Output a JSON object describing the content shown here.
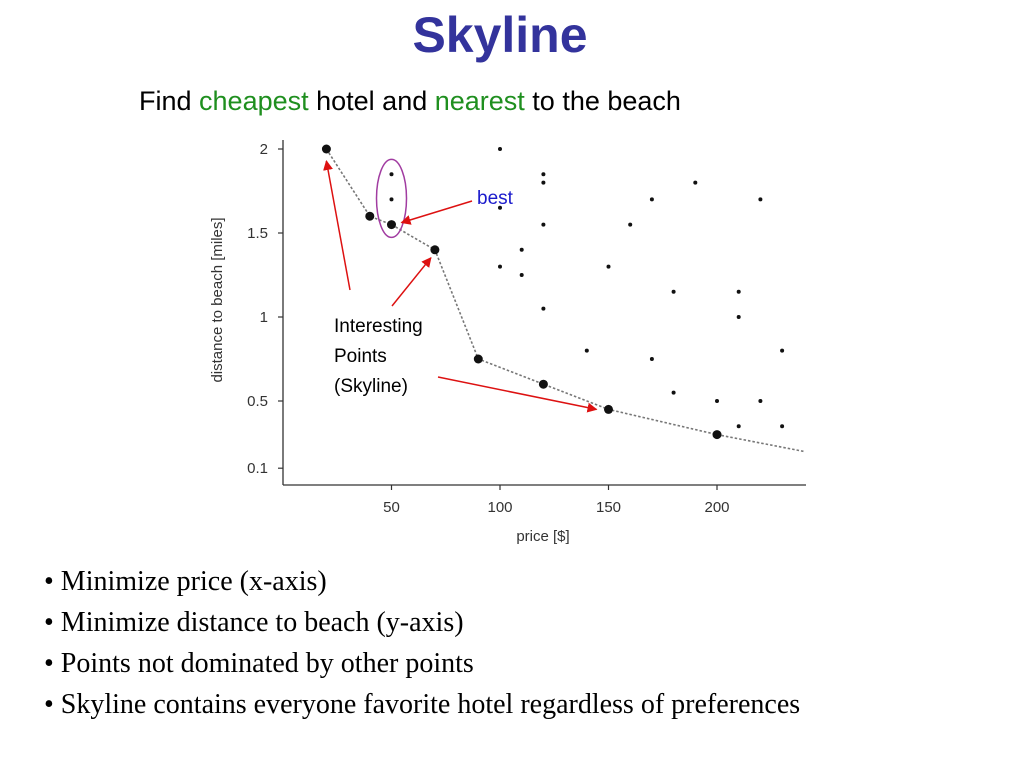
{
  "slide": {
    "title": "Skyline",
    "subtitle": {
      "part1": "Find ",
      "word1": "cheapest",
      "part2": " hotel and ",
      "word2": "nearest",
      "part3": " to the beach"
    },
    "bullets": [
      "• Minimize price (x-axis)",
      "• Minimize distance to beach (y-axis)",
      "• Points not dominated by other points",
      "• Skyline contains everyone favorite hotel regardless of preferences"
    ]
  },
  "colors": {
    "title": "#33339c",
    "highlight_word": "#1f8f1f",
    "arrow": "#dd1111",
    "ellipse": "#a13ca1",
    "best_label": "#1a1acc"
  },
  "chart_data": {
    "type": "scatter",
    "xlabel": "price [$]",
    "ylabel": "distance to beach [miles]",
    "xlim": [
      0,
      240
    ],
    "ylim": [
      0.1,
      2
    ],
    "x_ticks": [
      50,
      100,
      150,
      200
    ],
    "y_ticks": [
      0.1,
      0.5,
      1,
      1.5,
      2
    ],
    "x_tick_labels": [
      "50",
      "100",
      "150",
      "200"
    ],
    "y_tick_labels": [
      "0.1",
      "0.5",
      "1",
      "1.5",
      "2"
    ],
    "grid": false,
    "skyline_points": [
      {
        "x": 20,
        "y": 2.0
      },
      {
        "x": 40,
        "y": 1.6
      },
      {
        "x": 50,
        "y": 1.55
      },
      {
        "x": 70,
        "y": 1.4
      },
      {
        "x": 90,
        "y": 0.75
      },
      {
        "x": 120,
        "y": 0.6
      },
      {
        "x": 150,
        "y": 0.45
      },
      {
        "x": 200,
        "y": 0.3
      }
    ],
    "skyline_line_end": {
      "x": 240,
      "y": 0.2
    },
    "other_points": [
      {
        "x": 50,
        "y": 1.85
      },
      {
        "x": 50,
        "y": 1.7
      },
      {
        "x": 100,
        "y": 2.0
      },
      {
        "x": 100,
        "y": 1.65
      },
      {
        "x": 100,
        "y": 1.3
      },
      {
        "x": 110,
        "y": 1.4
      },
      {
        "x": 110,
        "y": 1.25
      },
      {
        "x": 120,
        "y": 1.85
      },
      {
        "x": 120,
        "y": 1.8
      },
      {
        "x": 120,
        "y": 1.55
      },
      {
        "x": 120,
        "y": 1.05
      },
      {
        "x": 140,
        "y": 0.8
      },
      {
        "x": 150,
        "y": 1.3
      },
      {
        "x": 160,
        "y": 1.55
      },
      {
        "x": 170,
        "y": 1.7
      },
      {
        "x": 170,
        "y": 0.75
      },
      {
        "x": 180,
        "y": 1.15
      },
      {
        "x": 180,
        "y": 0.55
      },
      {
        "x": 190,
        "y": 1.8
      },
      {
        "x": 200,
        "y": 0.5
      },
      {
        "x": 210,
        "y": 1.15
      },
      {
        "x": 210,
        "y": 1.0
      },
      {
        "x": 210,
        "y": 0.35
      },
      {
        "x": 220,
        "y": 1.7
      },
      {
        "x": 220,
        "y": 0.5
      },
      {
        "x": 230,
        "y": 0.8
      },
      {
        "x": 230,
        "y": 0.35
      }
    ],
    "annotations": {
      "best_label": "best",
      "best_point": {
        "x": 50,
        "y": 1.55
      },
      "interesting_lines": [
        "Interesting",
        "Points",
        "(Skyline)"
      ],
      "interesting_targets": [
        {
          "x": 20,
          "y": 2.0
        },
        {
          "x": 70,
          "y": 1.4
        },
        {
          "x": 150,
          "y": 0.45
        }
      ],
      "highlight_ellipse_center": {
        "x": 50,
        "y": 1.7
      }
    }
  }
}
